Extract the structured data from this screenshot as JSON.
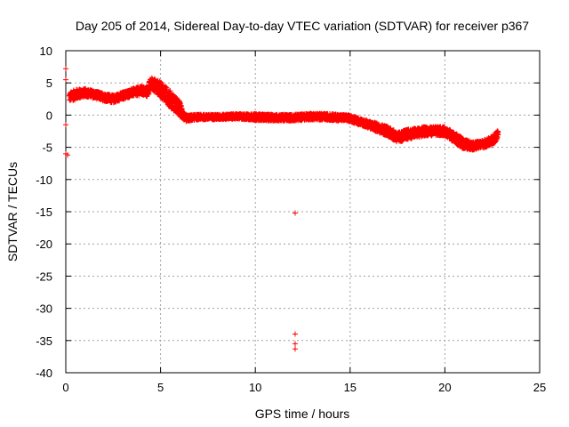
{
  "chart_data": {
    "type": "scatter",
    "title": "Day 205 of 2014, Sidereal Day-to-day VTEC variation (SDTVAR) for receiver p367",
    "xlabel": "GPS time / hours",
    "ylabel": "SDTVAR / TECUs",
    "xlim": [
      0,
      25
    ],
    "ylim": [
      -40,
      10
    ],
    "xticks": [
      0,
      5,
      10,
      15,
      20,
      25
    ],
    "yticks": [
      -40,
      -35,
      -30,
      -25,
      -20,
      -15,
      -10,
      -5,
      0,
      5,
      10
    ],
    "grid": true,
    "marker": "+",
    "series_color": "#ff0000",
    "trace": {
      "x": [
        0.2,
        0.5,
        1.0,
        1.5,
        2.0,
        2.5,
        3.0,
        3.5,
        4.0,
        4.3,
        4.5,
        5.0,
        5.5,
        6.0,
        6.3,
        7.0,
        8.0,
        9.0,
        10.0,
        11.0,
        12.0,
        12.5,
        13.0,
        14.0,
        15.0,
        16.0,
        17.0,
        17.5,
        18.0,
        19.0,
        20.0,
        20.5,
        21.0,
        21.5,
        22.0,
        22.5,
        22.8
      ],
      "y": [
        2.8,
        3.2,
        3.5,
        3.2,
        2.8,
        2.5,
        3.0,
        3.5,
        3.8,
        3.6,
        5.0,
        4.0,
        2.5,
        1.0,
        -0.5,
        -0.3,
        -0.3,
        -0.2,
        -0.3,
        -0.4,
        -0.4,
        -0.3,
        -0.2,
        -0.3,
        -0.5,
        -1.5,
        -2.5,
        -3.5,
        -3.0,
        -2.5,
        -2.5,
        -3.5,
        -4.5,
        -4.8,
        -4.5,
        -4.0,
        -3.0
      ],
      "spread": [
        0.7,
        0.8,
        0.6,
        0.6,
        0.6,
        0.6,
        0.6,
        0.6,
        0.7,
        0.8,
        0.9,
        1.2,
        1.3,
        1.2,
        0.5,
        0.4,
        0.4,
        0.4,
        0.5,
        0.5,
        0.5,
        0.5,
        0.5,
        0.5,
        0.5,
        0.6,
        0.8,
        0.8,
        0.8,
        0.7,
        0.7,
        0.8,
        0.8,
        0.6,
        0.6,
        0.7,
        0.7
      ]
    },
    "outliers": [
      {
        "x": 0.0,
        "y": 7.2
      },
      {
        "x": 0.0,
        "y": 5.5
      },
      {
        "x": 0.0,
        "y": -1.5
      },
      {
        "x": 0.0,
        "y": -6.0
      },
      {
        "x": 0.1,
        "y": -6.2
      },
      {
        "x": 12.1,
        "y": -15.2
      },
      {
        "x": 12.1,
        "y": -34.0
      },
      {
        "x": 12.1,
        "y": -35.5
      },
      {
        "x": 12.1,
        "y": -36.3
      }
    ]
  }
}
